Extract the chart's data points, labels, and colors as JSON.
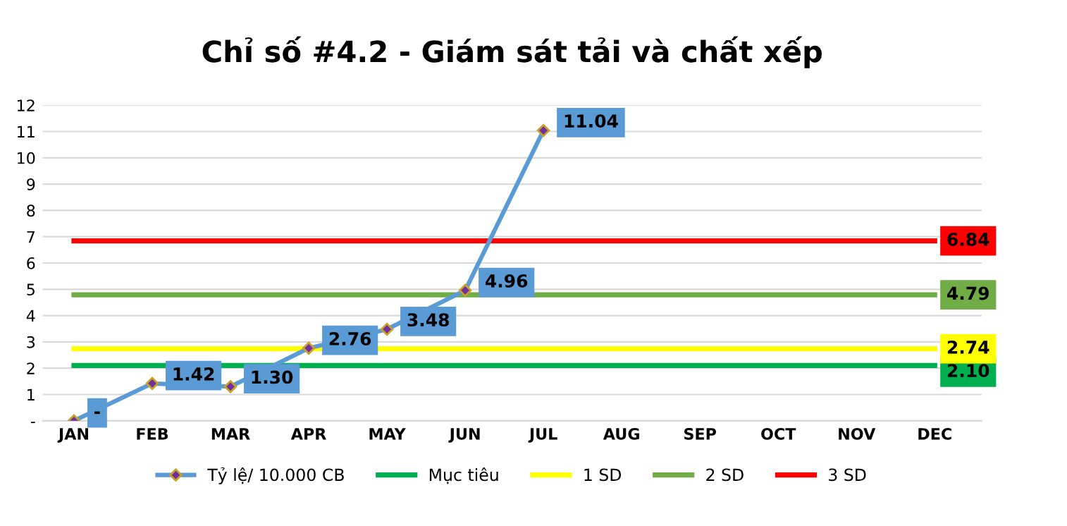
{
  "chart_data": {
    "type": "line",
    "title": "Chỉ số #4.2 - Giám sát tải và chất xếp",
    "categories": [
      "JAN",
      "FEB",
      "MAR",
      "APR",
      "MAY",
      "JUN",
      "JUL",
      "AUG",
      "SEP",
      "OCT",
      "NOV",
      "DEC"
    ],
    "series": [
      {
        "name": "Tỷ lệ/ 10.000 CB",
        "color": "#5b9bd5",
        "marker": "diamond",
        "values": [
          0,
          1.42,
          1.3,
          2.76,
          3.48,
          4.96,
          11.04,
          null,
          null,
          null,
          null,
          null
        ],
        "value_labels": [
          "-",
          "1.42",
          "1.30",
          "2.76",
          "3.48",
          "4.96",
          "11.04",
          null,
          null,
          null,
          null,
          null
        ]
      },
      {
        "name": "Mục tiêu",
        "color": "#00b050",
        "marker": "none",
        "values": [
          2.1,
          2.1,
          2.1,
          2.1,
          2.1,
          2.1,
          2.1,
          2.1,
          2.1,
          2.1,
          2.1,
          2.1
        ],
        "value_labels": [
          null,
          null,
          null,
          null,
          null,
          null,
          null,
          null,
          null,
          null,
          null,
          "2.10"
        ]
      },
      {
        "name": "1 SD",
        "color": "#ffff00",
        "marker": "none",
        "values": [
          2.74,
          2.74,
          2.74,
          2.74,
          2.74,
          2.74,
          2.74,
          2.74,
          2.74,
          2.74,
          2.74,
          2.74
        ],
        "value_labels": [
          null,
          null,
          null,
          null,
          null,
          null,
          null,
          null,
          null,
          null,
          null,
          "2.74"
        ]
      },
      {
        "name": "2 SD",
        "color": "#70ad47",
        "marker": "none",
        "values": [
          4.79,
          4.79,
          4.79,
          4.79,
          4.79,
          4.79,
          4.79,
          4.79,
          4.79,
          4.79,
          4.79,
          4.79
        ],
        "value_labels": [
          null,
          null,
          null,
          null,
          null,
          null,
          null,
          null,
          null,
          null,
          null,
          "4.79"
        ]
      },
      {
        "name": "3 SD",
        "color": "#ff0000",
        "marker": "none",
        "values": [
          6.84,
          6.84,
          6.84,
          6.84,
          6.84,
          6.84,
          6.84,
          6.84,
          6.84,
          6.84,
          6.84,
          6.84
        ],
        "value_labels": [
          null,
          null,
          null,
          null,
          null,
          null,
          null,
          null,
          null,
          null,
          null,
          "6.84"
        ]
      }
    ],
    "ylim": [
      0,
      12
    ],
    "yticks": [
      {
        "value": 0,
        "label": "-"
      },
      1,
      2,
      3,
      4,
      5,
      6,
      7,
      8,
      9,
      10,
      11,
      12
    ],
    "grid": "y",
    "legend": "bottom"
  }
}
